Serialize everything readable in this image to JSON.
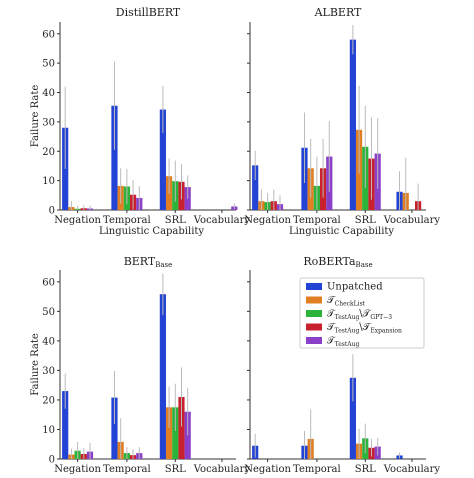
{
  "figure": {
    "ylabel": "Failure Rate",
    "xlabel_line2": "Linguistic Capability"
  },
  "legend": {
    "colors": [
      "#2243d4",
      "#e07f24",
      "#2bb33a",
      "#c8202c",
      "#8b40c9"
    ],
    "entries": [
      {
        "main": "Unpatched",
        "sub": ""
      },
      {
        "main": "𝒯",
        "sub": "CheckList"
      },
      {
        "main": "𝒯",
        "sub": "TestAug",
        "join": "\\𝒯",
        "sub2": "GPT−3"
      },
      {
        "main": "𝒯",
        "sub": "TestAug",
        "join": "\\𝒯",
        "sub2": "Expansion"
      },
      {
        "main": "𝒯",
        "sub": "TestAug"
      }
    ]
  },
  "chart_data": [
    {
      "type": "bar",
      "title": "DistillBERT",
      "title_sub": "",
      "categories": [
        "Negation",
        "Temporal",
        "SRL",
        "Vocabulary"
      ],
      "ylim": [
        0,
        64
      ],
      "yticks": [
        0,
        10,
        20,
        30,
        40,
        50,
        60
      ],
      "series": [
        {
          "name": "Unpatched",
          "values": [
            28,
            35.5,
            34.2,
            0
          ],
          "err": [
            14,
            15,
            8,
            0
          ]
        },
        {
          "name": "T_CheckList",
          "values": [
            1,
            8.2,
            11.5,
            0
          ],
          "err": [
            2,
            6,
            6,
            0
          ]
        },
        {
          "name": "T_TestAug \\ T_GPT-3",
          "values": [
            0.4,
            8,
            9.8,
            0
          ],
          "err": [
            1,
            6,
            7,
            0
          ]
        },
        {
          "name": "T_TestAug \\ T_Expansion",
          "values": [
            0.6,
            5.2,
            9.6,
            0
          ],
          "err": [
            1,
            5,
            6,
            0
          ]
        },
        {
          "name": "T_TestAug",
          "values": [
            0.5,
            4.1,
            7.8,
            1.2
          ],
          "err": [
            1,
            4,
            4,
            1
          ]
        }
      ]
    },
    {
      "type": "bar",
      "title": "ALBERT",
      "title_sub": "",
      "categories": [
        "Negation",
        "Temporal",
        "SRL",
        "Vocabulary"
      ],
      "ylim": [
        0,
        64
      ],
      "yticks": [
        0,
        10,
        20,
        30,
        40,
        50,
        60
      ],
      "series": [
        {
          "name": "Unpatched",
          "values": [
            15.2,
            21.2,
            58,
            6.2
          ],
          "err": [
            5,
            12,
            5,
            7
          ]
        },
        {
          "name": "T_CheckList",
          "values": [
            3,
            14.2,
            27.3,
            5.8
          ],
          "err": [
            4,
            10,
            15,
            12
          ]
        },
        {
          "name": "T_TestAug \\ T_GPT-3",
          "values": [
            2.7,
            8.2,
            21.5,
            0
          ],
          "err": [
            3,
            10,
            14,
            0
          ]
        },
        {
          "name": "T_TestAug \\ T_Expansion",
          "values": [
            3,
            14.2,
            17.5,
            3
          ],
          "err": [
            4,
            10,
            14,
            6
          ]
        },
        {
          "name": "T_TestAug",
          "values": [
            2,
            18.2,
            19.2,
            0
          ],
          "err": [
            3,
            12,
            12,
            0
          ]
        }
      ]
    },
    {
      "type": "bar",
      "title": "BERT",
      "title_sub": "Base",
      "categories": [
        "Negation",
        "Temporal",
        "SRL",
        "Vocabulary"
      ],
      "ylim": [
        0,
        64
      ],
      "yticks": [
        0,
        10,
        20,
        30,
        40,
        50,
        60
      ],
      "series": [
        {
          "name": "Unpatched",
          "values": [
            23,
            20.8,
            55.8,
            0
          ],
          "err": [
            6,
            9,
            7,
            0
          ]
        },
        {
          "name": "T_CheckList",
          "values": [
            1.5,
            5.8,
            17.5,
            0
          ],
          "err": [
            2,
            8,
            7,
            0
          ]
        },
        {
          "name": "T_TestAug \\ T_GPT-3",
          "values": [
            2.8,
            2,
            17.5,
            0
          ],
          "err": [
            3,
            2,
            8,
            0
          ]
        },
        {
          "name": "T_TestAug \\ T_Expansion",
          "values": [
            1.7,
            1.3,
            21,
            0
          ],
          "err": [
            2,
            2,
            10,
            0
          ]
        },
        {
          "name": "T_TestAug",
          "values": [
            2.5,
            2,
            16,
            0
          ],
          "err": [
            3,
            2,
            8,
            0
          ]
        }
      ]
    },
    {
      "type": "bar",
      "title": "RoBERTa",
      "title_sub": "Base",
      "categories": [
        "Negation",
        "Temporal",
        "SRL",
        "Vocabulary"
      ],
      "ylim": [
        0,
        64
      ],
      "yticks": [],
      "series": [
        {
          "name": "Unpatched",
          "values": [
            4.5,
            4.5,
            27.5,
            1.2
          ],
          "err": [
            4,
            5,
            8,
            1
          ]
        },
        {
          "name": "T_CheckList",
          "values": [
            0,
            6.8,
            5.2,
            0
          ],
          "err": [
            0,
            10,
            5,
            0
          ]
        },
        {
          "name": "T_TestAug \\ T_GPT-3",
          "values": [
            0,
            0,
            7,
            0
          ],
          "err": [
            0,
            0,
            5,
            0
          ]
        },
        {
          "name": "T_TestAug \\ T_Expansion",
          "values": [
            0,
            0,
            3.8,
            0
          ],
          "err": [
            0,
            0,
            3,
            0
          ]
        },
        {
          "name": "T_TestAug",
          "values": [
            0,
            0,
            4.2,
            0
          ],
          "err": [
            0,
            0,
            3,
            0
          ]
        }
      ]
    }
  ]
}
